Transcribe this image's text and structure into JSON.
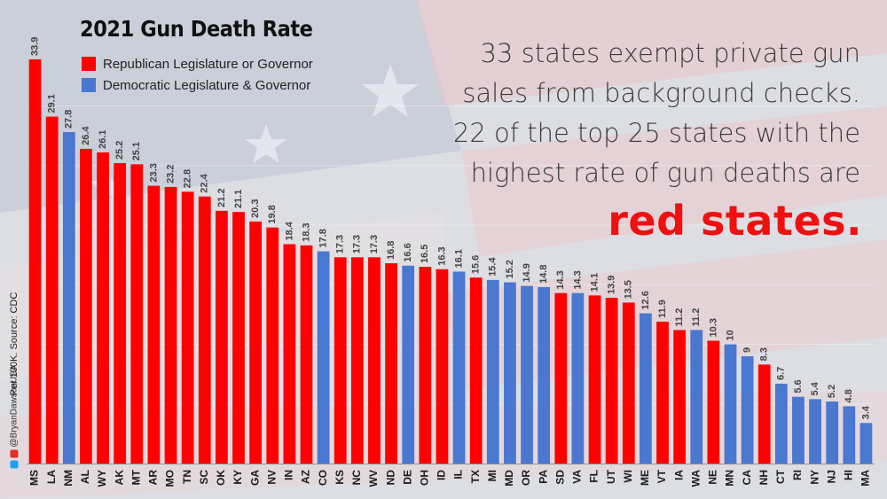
{
  "title": "2021 Gun Death Rate",
  "legend": [
    {
      "label": "Republican Legislature or Governor",
      "color": "#ff0000"
    },
    {
      "label": "Democratic Legislature & Governor",
      "color": "#4a77d0"
    }
  ],
  "headline": {
    "lines": [
      "33 states exempt private gun",
      "sales from background checks.",
      "22 of the top 25 states with the",
      "highest rate of gun deaths are"
    ],
    "highlight": "red states."
  },
  "side_note": "Per 100K. Source: CDC",
  "handle": "@BryanDawsonUSA",
  "colors": {
    "republican": "#ff0000",
    "democratic": "#4a77d0",
    "highlight": "#f01010"
  },
  "chart_data": {
    "type": "bar",
    "title": "2021 Gun Death Rate",
    "xlabel": "",
    "ylabel": "Per 100K",
    "ylim": [
      0,
      33.9
    ],
    "grid": true,
    "legend_placement": "top-left",
    "categories": [
      "MS",
      "LA",
      "NM",
      "AL",
      "WY",
      "AK",
      "MT",
      "AR",
      "MO",
      "TN",
      "SC",
      "OK",
      "KY",
      "GA",
      "NV",
      "IN",
      "AZ",
      "CO",
      "KS",
      "NC",
      "WV",
      "ND",
      "DE",
      "OH",
      "ID",
      "IL",
      "TX",
      "MI",
      "MD",
      "OR",
      "PA",
      "SD",
      "VA",
      "FL",
      "UT",
      "WI",
      "ME",
      "VT",
      "IA",
      "WA",
      "NE",
      "MN",
      "CA",
      "NH",
      "CT",
      "RI",
      "NY",
      "NJ",
      "HI",
      "MA"
    ],
    "values": [
      33.9,
      29.1,
      27.8,
      26.4,
      26.1,
      25.2,
      25.1,
      23.3,
      23.2,
      22.8,
      22.4,
      21.2,
      21.1,
      20.3,
      19.8,
      18.4,
      18.3,
      17.8,
      17.3,
      17.3,
      17.3,
      16.8,
      16.6,
      16.5,
      16.3,
      16.1,
      15.6,
      15.4,
      15.2,
      14.9,
      14.8,
      14.3,
      14.3,
      14.1,
      13.9,
      13.5,
      12.6,
      11.9,
      11.2,
      11.2,
      10.3,
      10,
      9,
      8.3,
      6.7,
      5.6,
      5.4,
      5.2,
      4.8,
      3.4
    ],
    "value_labels": [
      "33.9",
      "29.1",
      "27.8",
      "26.4",
      "26.1",
      "25.2",
      "25.1",
      "23.3",
      "23.2",
      "22.8",
      "22.4",
      "21.2",
      "21.1",
      "20.3",
      "19.8",
      "18.4",
      "18.3",
      "17.8",
      "17.3",
      "17.3",
      "17.3",
      "16.8",
      "16.6",
      "16.5",
      "16.3",
      "16.1",
      "15.6",
      "15.4",
      "15.2",
      "14.9",
      "14.8",
      "14.3",
      "14.3",
      "14.1",
      "13.9",
      "13.5",
      "12.6",
      "11.9",
      "11.2",
      "11.2",
      "10.3",
      "10",
      "9",
      "8.3",
      "6.7",
      "5.6",
      "5.4",
      "5.2",
      "4.8",
      "3.4"
    ],
    "party": [
      "R",
      "R",
      "D",
      "R",
      "R",
      "R",
      "R",
      "R",
      "R",
      "R",
      "R",
      "R",
      "R",
      "R",
      "R",
      "R",
      "R",
      "D",
      "R",
      "R",
      "R",
      "R",
      "D",
      "R",
      "R",
      "D",
      "R",
      "D",
      "D",
      "D",
      "D",
      "R",
      "D",
      "R",
      "R",
      "R",
      "D",
      "R",
      "R",
      "D",
      "R",
      "D",
      "D",
      "R",
      "D",
      "D",
      "D",
      "D",
      "D",
      "D"
    ],
    "series": [
      {
        "name": "Republican Legislature or Governor",
        "code": "R"
      },
      {
        "name": "Democratic Legislature & Governor",
        "code": "D"
      }
    ]
  }
}
